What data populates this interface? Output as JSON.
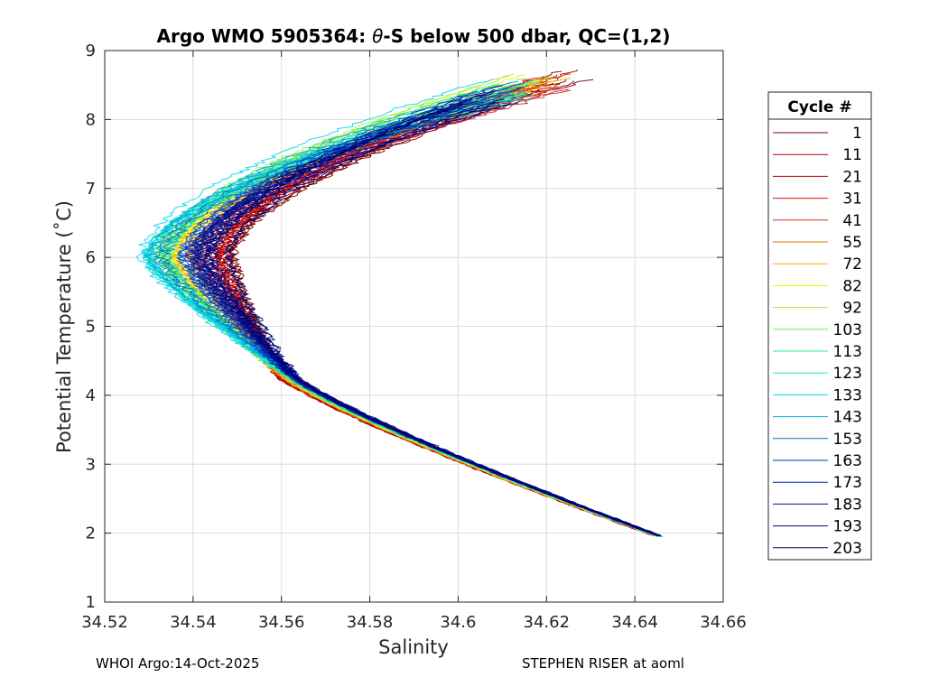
{
  "chart_data": {
    "type": "line",
    "title_prefix": "Argo WMO 5905364: ",
    "title_symbol": "θ",
    "title_suffix": "-S below 500 dbar,  QC=(1,2)",
    "xlabel": "Salinity",
    "ylabel": "Potential Temperature (˚C)",
    "xlim": [
      34.52,
      34.66
    ],
    "ylim": [
      1,
      9
    ],
    "x_ticks": [
      34.52,
      34.54,
      34.56,
      34.58,
      34.6,
      34.62,
      34.64,
      34.66
    ],
    "x_tick_labels": [
      "34.52",
      "34.54",
      "34.56",
      "34.58",
      "34.6",
      "34.62",
      "34.64",
      "34.66"
    ],
    "y_ticks": [
      1,
      2,
      3,
      4,
      5,
      6,
      7,
      8,
      9
    ],
    "y_tick_labels": [
      "1",
      "2",
      "3",
      "4",
      "5",
      "6",
      "7",
      "8",
      "9"
    ],
    "grid": true,
    "legend_title": "Cycle #",
    "legend_position": "right-outside",
    "series": [
      {
        "name": "1",
        "color": "#800000",
        "nose_salinity": 34.547
      },
      {
        "name": "11",
        "color": "#a00000",
        "nose_salinity": 34.546
      },
      {
        "name": "21",
        "color": "#c00000",
        "nose_salinity": 34.545
      },
      {
        "name": "31",
        "color": "#d81010",
        "nose_salinity": 34.543
      },
      {
        "name": "41",
        "color": "#e02828",
        "nose_salinity": 34.542
      },
      {
        "name": "55",
        "color": "#e07800",
        "nose_salinity": 34.539
      },
      {
        "name": "72",
        "color": "#f0b000",
        "nose_salinity": 34.537
      },
      {
        "name": "82",
        "color": "#f0f000",
        "nose_salinity": 34.535
      },
      {
        "name": "92",
        "color": "#a8f040",
        "nose_salinity": 34.534
      },
      {
        "name": "103",
        "color": "#60f060",
        "nose_salinity": 34.533
      },
      {
        "name": "113",
        "color": "#30e880",
        "nose_salinity": 34.532
      },
      {
        "name": "123",
        "color": "#20e8c0",
        "nose_salinity": 34.531
      },
      {
        "name": "133",
        "color": "#00d8f0",
        "nose_salinity": 34.53
      },
      {
        "name": "143",
        "color": "#00a8e8",
        "nose_salinity": 34.532
      },
      {
        "name": "153",
        "color": "#0070d0",
        "nose_salinity": 34.535
      },
      {
        "name": "163",
        "color": "#0040c0",
        "nose_salinity": 34.538
      },
      {
        "name": "173",
        "color": "#0020a8",
        "nose_salinity": 34.54
      },
      {
        "name": "183",
        "color": "#001090",
        "nose_salinity": 34.542
      },
      {
        "name": "193",
        "color": "#000880",
        "nose_salinity": 34.544
      },
      {
        "name": "203",
        "color": "#000070",
        "nose_salinity": 34.546
      }
    ]
  },
  "footer": {
    "left": "WHOI Argo:14-Oct-2025",
    "right": "STEPHEN RISER at aoml"
  }
}
